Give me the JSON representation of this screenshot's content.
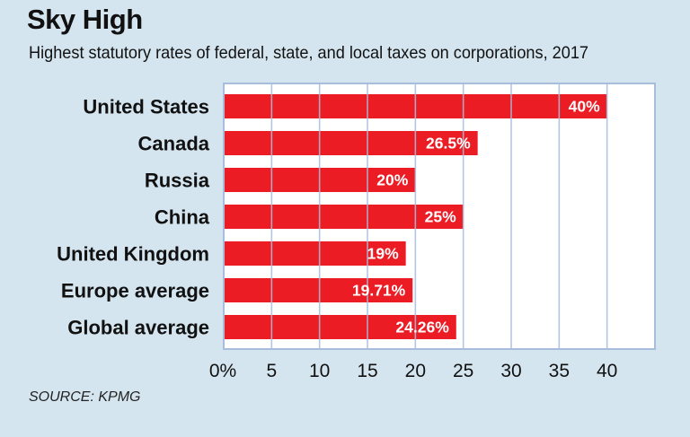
{
  "chart_data": {
    "type": "bar",
    "orientation": "horizontal",
    "title": "Sky High",
    "subtitle": "Highest statutory rates of federal, state, and local taxes on corporations, 2017",
    "categories": [
      "United States",
      "Canada",
      "Russia",
      "China",
      "United Kingdom",
      "Europe average",
      "Global average"
    ],
    "values": [
      40,
      26.5,
      20,
      25,
      19,
      19.71,
      24.26
    ],
    "data_labels": [
      "40%",
      "26.5%",
      "20%",
      "25%",
      "19%",
      "19.71%",
      "24.26%"
    ],
    "xticks": [
      "0%",
      "5",
      "10",
      "15",
      "20",
      "25",
      "30",
      "35",
      "40"
    ],
    "xlim": [
      0,
      45
    ],
    "grid": true,
    "bar_color": "#ec1c24",
    "grid_color": "#a7bddc",
    "source": "SOURCE: KPMG"
  }
}
